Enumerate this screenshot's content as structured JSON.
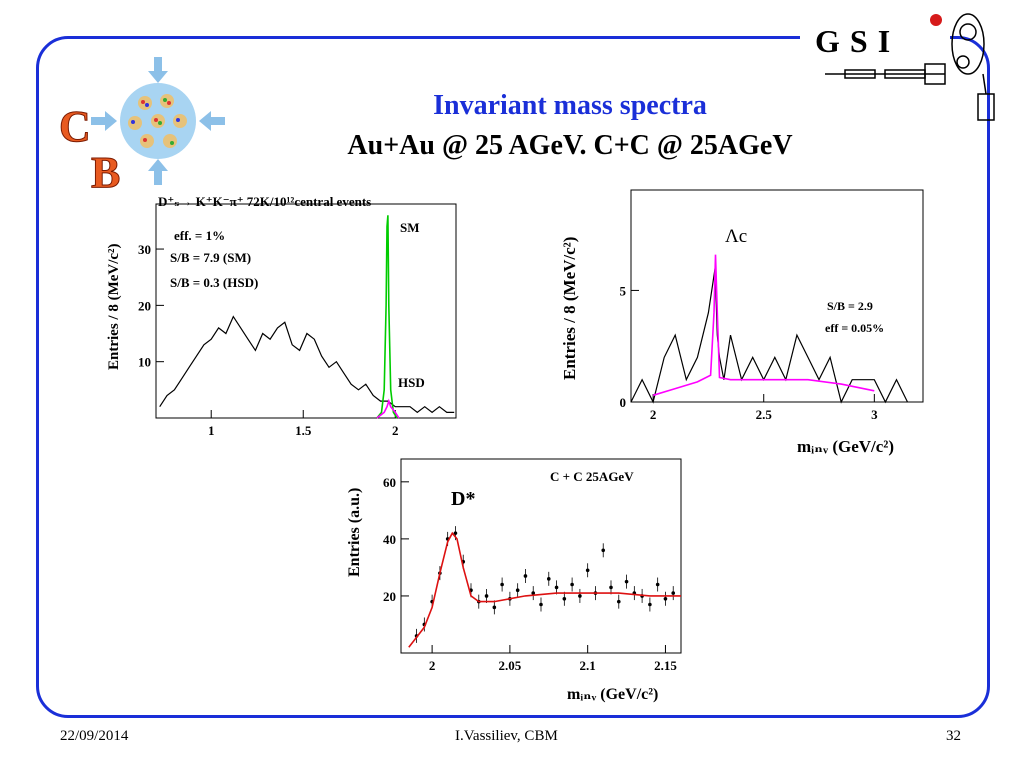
{
  "slide": {
    "title": "Invariant mass spectra",
    "subtitle": "Au+Au @ 25 AGeV. C+C @ 25AGeV",
    "footer_date": "22/09/2014",
    "footer_author": "I.Vassiliev, CBM",
    "footer_page": "32",
    "accent_color": "#1a2fd8"
  },
  "logos": {
    "cbm_letters": [
      "C",
      "B"
    ],
    "gsi_text": "GSI"
  },
  "chart_data": [
    {
      "type": "line",
      "header": "D⁺ₛ→ K⁺K⁻π⁺   72K/10¹²central events",
      "ylabel": "Entries / 8 (MeV/c²)",
      "xlim": [
        0.7,
        2.33
      ],
      "ylim": [
        0,
        38
      ],
      "x_ticks": [
        "1",
        "1.5",
        "2"
      ],
      "x_tick_values": [
        1,
        1.5,
        2
      ],
      "y_ticks": [
        "10",
        "20",
        "30"
      ],
      "y_tick_values": [
        10,
        20,
        30
      ],
      "annotations": [
        "eff. = 1%",
        "S/B = 7.9 (SM)",
        "S/B = 0.3 (HSD)",
        "SM",
        "HSD"
      ],
      "series": [
        {
          "color": "#000000",
          "x": [
            0.72,
            0.76,
            0.8,
            0.84,
            0.88,
            0.92,
            0.96,
            1.0,
            1.04,
            1.08,
            1.12,
            1.16,
            1.2,
            1.24,
            1.28,
            1.32,
            1.36,
            1.4,
            1.44,
            1.48,
            1.52,
            1.56,
            1.6,
            1.64,
            1.68,
            1.72,
            1.76,
            1.8,
            1.84,
            1.88,
            1.92,
            1.96,
            2.0,
            2.04,
            2.08,
            2.12,
            2.16,
            2.2,
            2.24,
            2.28,
            2.32
          ],
          "values": [
            2,
            4,
            5,
            7,
            9,
            11,
            13,
            14,
            16,
            15,
            18,
            16,
            14,
            12,
            15,
            14,
            16,
            17,
            13,
            12,
            15,
            14,
            11,
            9,
            10,
            8,
            6,
            5,
            6,
            4,
            3,
            3,
            2,
            2,
            2,
            1,
            2,
            1,
            2,
            1,
            1
          ]
        },
        {
          "color": "#00cc00",
          "x": [
            1.9,
            1.925,
            1.94,
            1.95,
            1.955,
            1.96,
            1.965,
            1.975,
            1.99,
            2.01
          ],
          "values": [
            0,
            1,
            5,
            20,
            34,
            36,
            20,
            5,
            1,
            0
          ]
        },
        {
          "color": "#ff00ff",
          "x": [
            1.9,
            1.94,
            1.955,
            1.965,
            1.975,
            2.0,
            2.02
          ],
          "values": [
            0,
            1,
            2,
            3,
            2,
            1,
            0
          ]
        }
      ]
    },
    {
      "type": "line",
      "ylabel": "Entries / 8 (MeV/c²)",
      "xlabel": "mᵢₙᵥ (GeV/c²)",
      "xlim": [
        1.9,
        3.22
      ],
      "ylim": [
        0,
        9.5
      ],
      "x_ticks": [
        "2",
        "2.5",
        "3"
      ],
      "x_tick_values": [
        2,
        2.5,
        3
      ],
      "y_ticks": [
        "0",
        "5"
      ],
      "y_tick_values": [
        0,
        5
      ],
      "annotations": [
        "Λc",
        "S/B = 2.9",
        "eff = 0.05%"
      ],
      "series": [
        {
          "color": "#000000",
          "x": [
            1.9,
            1.95,
            2.0,
            2.05,
            2.1,
            2.15,
            2.2,
            2.25,
            2.28,
            2.29,
            2.3,
            2.32,
            2.35,
            2.4,
            2.45,
            2.5,
            2.55,
            2.6,
            2.65,
            2.7,
            2.75,
            2.8,
            2.85,
            2.9,
            2.95,
            3.0,
            3.05,
            3.1,
            3.15
          ],
          "values": [
            0,
            1,
            0,
            2,
            3,
            1,
            2,
            4,
            6,
            3,
            2,
            1,
            3,
            1,
            2,
            1,
            2,
            1,
            3,
            2,
            1,
            2,
            0,
            1,
            1,
            1,
            0,
            1,
            0
          ]
        },
        {
          "color": "#ff00ff",
          "x": [
            2.0,
            2.1,
            2.2,
            2.26,
            2.275,
            2.282,
            2.29,
            2.3,
            2.35,
            2.5,
            2.7,
            2.85,
            3.0
          ],
          "values": [
            0.3,
            0.6,
            0.9,
            1.2,
            4.0,
            6.6,
            4.0,
            1.1,
            1.0,
            1.0,
            1.0,
            0.8,
            0.5
          ]
        }
      ]
    },
    {
      "type": "scatter",
      "header": "C + C   25AGeV",
      "ylabel": "Entries (a.u.)",
      "xlabel": "mᵢₙᵥ (GeV/c²)",
      "xlim": [
        1.98,
        2.16
      ],
      "ylim": [
        0,
        68
      ],
      "x_ticks": [
        "2",
        "2.05",
        "2.1",
        "2.15"
      ],
      "x_tick_values": [
        2,
        2.05,
        2.1,
        2.15
      ],
      "y_ticks": [
        "20",
        "40",
        "60"
      ],
      "y_tick_values": [
        20,
        40,
        60
      ],
      "annotations": [
        "D*"
      ],
      "series": [
        {
          "color": "#000000",
          "x": [
            1.99,
            1.995,
            2.0,
            2.005,
            2.01,
            2.015,
            2.02,
            2.025,
            2.03,
            2.035,
            2.04,
            2.045,
            2.05,
            2.055,
            2.06,
            2.065,
            2.07,
            2.075,
            2.08,
            2.085,
            2.09,
            2.095,
            2.1,
            2.105,
            2.11,
            2.115,
            2.12,
            2.125,
            2.13,
            2.135,
            2.14,
            2.145,
            2.15,
            2.155
          ],
          "values": [
            6,
            10,
            18,
            28,
            40,
            42,
            32,
            22,
            18,
            20,
            16,
            24,
            19,
            22,
            27,
            21,
            17,
            26,
            23,
            19,
            24,
            20,
            29,
            21,
            36,
            23,
            18,
            25,
            21,
            20,
            17,
            24,
            19,
            21
          ]
        },
        {
          "color": "#dd1111",
          "x": [
            1.985,
            1.995,
            2.0,
            2.005,
            2.01,
            2.013,
            2.016,
            2.02,
            2.025,
            2.03,
            2.04,
            2.06,
            2.08,
            2.1,
            2.12,
            2.14,
            2.16
          ],
          "values": [
            2,
            9,
            16,
            28,
            39,
            42,
            40,
            30,
            20,
            18,
            18,
            20,
            21,
            21,
            21,
            20,
            20
          ]
        }
      ]
    }
  ]
}
